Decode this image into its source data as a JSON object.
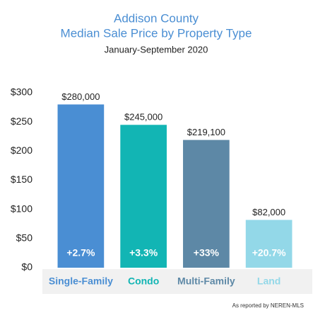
{
  "chart_data": {
    "type": "bar",
    "title": [
      "Addison County",
      "Median Sale Price by Property Type"
    ],
    "subtitle": "January-September 2020",
    "categories": [
      "Single-Family",
      "Condo",
      "Multi-Family",
      "Land"
    ],
    "values": [
      280,
      245,
      219.1,
      82
    ],
    "value_labels": [
      "$280,000",
      "$245,000",
      "$219,100",
      "$82,000"
    ],
    "changes": [
      "+2.7%",
      "+3.3%",
      "+33%",
      "+20.7%"
    ],
    "colors": [
      "#4a8ed3",
      "#12b5b4",
      "#5d88a6",
      "#93d8e8"
    ],
    "ylim": [
      0,
      300
    ],
    "yticks": [
      {
        "value": 0,
        "label": "$0"
      },
      {
        "value": 50,
        "label": "$50"
      },
      {
        "value": 100,
        "label": "$100"
      },
      {
        "value": 150,
        "label": "$150"
      },
      {
        "value": 200,
        "label": "$200"
      },
      {
        "value": 250,
        "label": "$250"
      },
      {
        "value": 300,
        "label": "$300"
      }
    ],
    "grid": false,
    "source": "As reported by NEREN-MLS"
  }
}
